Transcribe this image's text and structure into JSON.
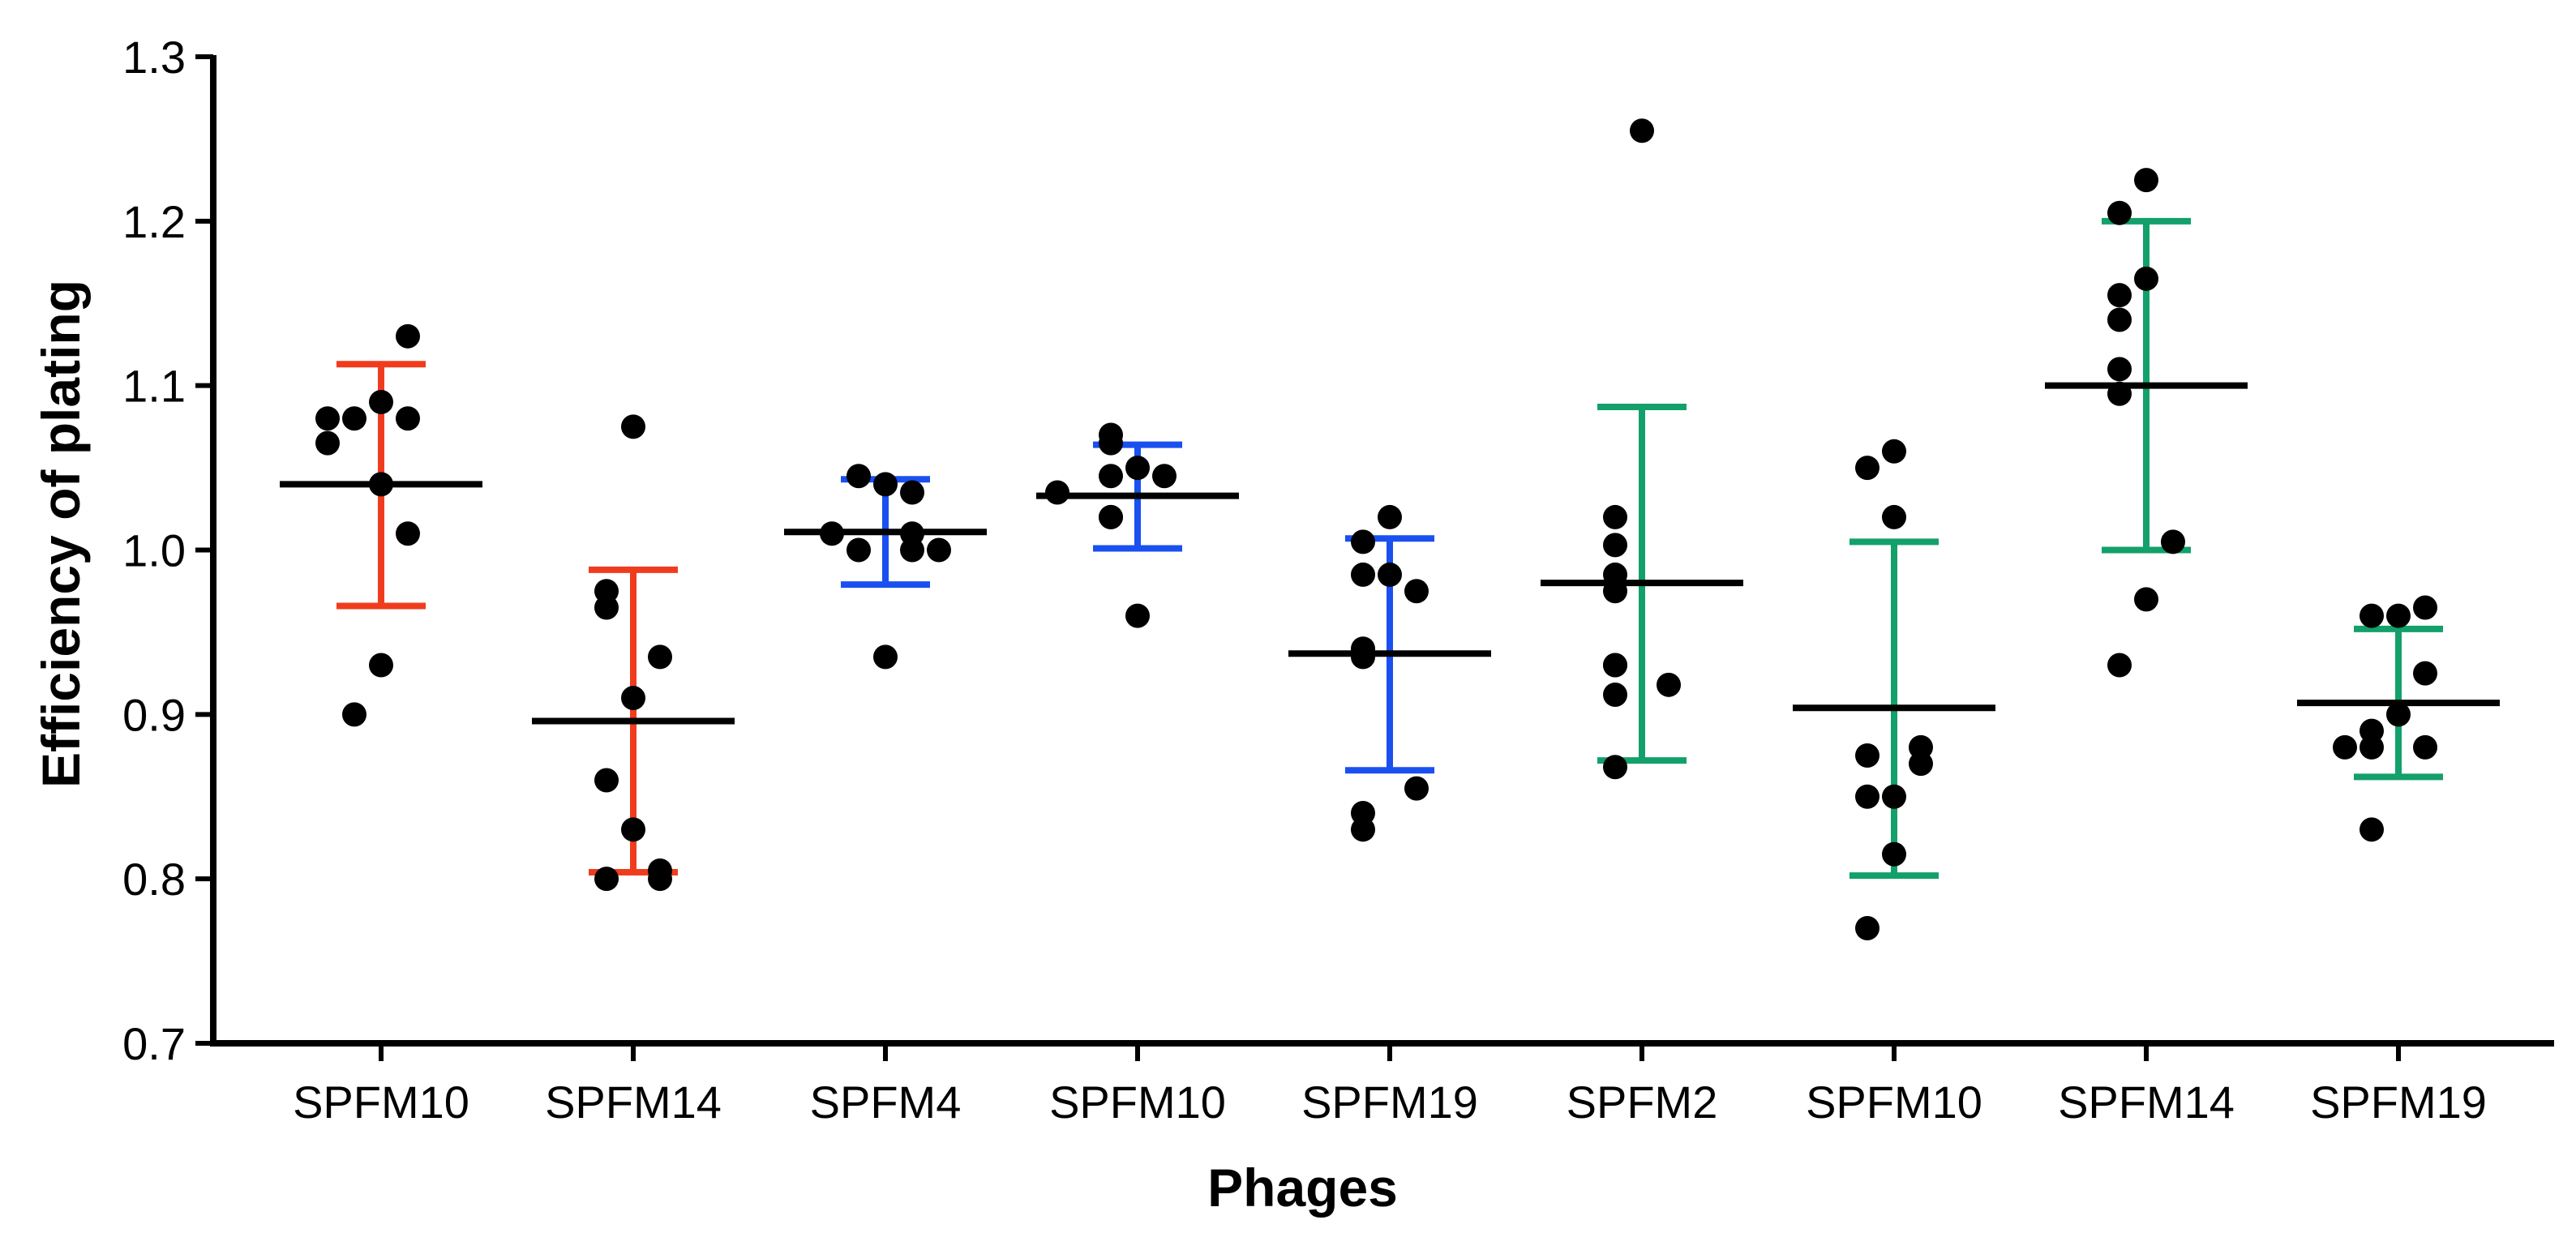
{
  "chart_data": {
    "type": "scatter",
    "title": "",
    "xlabel": "Phages",
    "ylabel": "Efficiency of plating",
    "ylim": [
      0.7,
      1.3
    ],
    "yticks": [
      "0.7",
      "0.8",
      "0.9",
      "1.0",
      "1.1",
      "1.2",
      "1.3"
    ],
    "grid": false,
    "legend": "none",
    "categories": [
      "SPFM10",
      "SPFM14",
      "SPFM4",
      "SPFM10",
      "SPFM19",
      "SPFM2",
      "SPFM10",
      "SPFM14",
      "SPFM19"
    ],
    "colors": {
      "red": "#f03c1e",
      "blue": "#1a50f0",
      "green": "#13a06a",
      "mean_line": "#000000",
      "point": "#000000"
    },
    "series": [
      {
        "name": "SPFM10",
        "color": "red",
        "mean": 1.04,
        "sd_low": 0.966,
        "sd_high": 1.113,
        "points": [
          1.09,
          1.08,
          1.08,
          1.13,
          1.08,
          1.065,
          1.04,
          1.01,
          0.93,
          0.9
        ]
      },
      {
        "name": "SPFM14",
        "color": "red",
        "mean": 0.896,
        "sd_low": 0.804,
        "sd_high": 0.988,
        "points": [
          1.075,
          0.975,
          0.965,
          0.935,
          0.91,
          0.86,
          0.83,
          0.805,
          0.8,
          0.8
        ]
      },
      {
        "name": "SPFM4",
        "color": "blue",
        "mean": 1.011,
        "sd_low": 0.979,
        "sd_high": 1.043,
        "points": [
          1.04,
          1.045,
          1.035,
          1.01,
          1.0,
          1.0,
          1.01,
          1.0,
          0.935
        ]
      },
      {
        "name": "SPFM10",
        "color": "blue",
        "mean": 1.033,
        "sd_low": 1.001,
        "sd_high": 1.064,
        "points": [
          1.05,
          1.065,
          1.07,
          1.045,
          1.045,
          1.02,
          1.02,
          1.035,
          0.96
        ]
      },
      {
        "name": "SPFM19",
        "color": "blue",
        "mean": 0.937,
        "sd_low": 0.866,
        "sd_high": 1.007,
        "points": [
          1.02,
          1.005,
          0.985,
          0.985,
          0.975,
          0.94,
          0.935,
          0.855,
          0.84,
          0.83
        ]
      },
      {
        "name": "SPFM2",
        "color": "green",
        "mean": 0.98,
        "sd_low": 0.872,
        "sd_high": 1.087,
        "points": [
          1.255,
          1.02,
          1.003,
          0.985,
          0.975,
          0.93,
          0.93,
          0.918,
          0.912,
          0.868
        ]
      },
      {
        "name": "SPFM10",
        "color": "green",
        "mean": 0.904,
        "sd_low": 0.802,
        "sd_high": 1.005,
        "points": [
          1.06,
          1.05,
          1.02,
          0.88,
          0.875,
          0.87,
          0.85,
          0.85,
          0.815,
          0.77
        ]
      },
      {
        "name": "SPFM14",
        "color": "green",
        "mean": 1.1,
        "sd_low": 1.0,
        "sd_high": 1.2,
        "points": [
          1.225,
          1.205,
          1.165,
          1.155,
          1.14,
          1.11,
          1.095,
          1.005,
          0.97,
          0.93
        ]
      },
      {
        "name": "SPFM19",
        "color": "green",
        "mean": 0.907,
        "sd_low": 0.862,
        "sd_high": 0.952,
        "points": [
          0.96,
          0.96,
          0.965,
          0.925,
          0.9,
          0.89,
          0.88,
          0.88,
          0.88,
          0.83
        ]
      }
    ]
  }
}
